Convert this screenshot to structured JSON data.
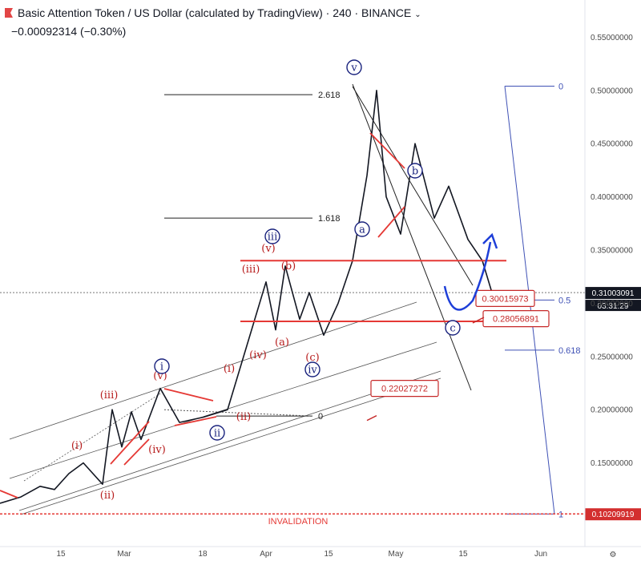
{
  "header": {
    "title": "Basic Attention Token / US Dollar (calculated by TradingView) · 240 · BINANCE",
    "change": "−0.00092314 (−0.30%)"
  },
  "chart_data": {
    "type": "line",
    "interval": "240",
    "exchange": "BINANCE",
    "ylim": [
      0.07,
      0.57
    ],
    "y_ticks": [
      "0.55000000",
      "0.50000000",
      "0.45000000",
      "0.40000000",
      "0.35000000",
      "0.30000000",
      "0.25000000",
      "0.20000000",
      "0.15000000"
    ],
    "x_ticks": [
      "15",
      "Mar",
      "18",
      "Apr",
      "15",
      "May",
      "15",
      "Jun"
    ],
    "last_price": "0.31003091",
    "countdown": "03:31:29",
    "invalidation_price": "0.10209919",
    "invalidation_label": "INVALIDATION",
    "price_path": [
      [
        "2021-02-05",
        0.118
      ],
      [
        "2021-02-09",
        0.128
      ],
      [
        "2021-02-12",
        0.125
      ],
      [
        "2021-02-15",
        0.14
      ],
      [
        "2021-02-18",
        0.15
      ],
      [
        "2021-02-22",
        0.13
      ],
      [
        "2021-02-24",
        0.2
      ],
      [
        "2021-02-26",
        0.165
      ],
      [
        "2021-02-28",
        0.198
      ],
      [
        "2021-03-02",
        0.172
      ],
      [
        "2021-03-06",
        0.22
      ],
      [
        "2021-03-10",
        0.188
      ],
      [
        "2021-03-15",
        0.193
      ],
      [
        "2021-03-20",
        0.2
      ],
      [
        "2021-03-24",
        0.26
      ],
      [
        "2021-03-28",
        0.32
      ],
      [
        "2021-03-30",
        0.275
      ],
      [
        "2021-04-01",
        0.335
      ],
      [
        "2021-04-04",
        0.285
      ],
      [
        "2021-04-06",
        0.31
      ],
      [
        "2021-04-09",
        0.27
      ],
      [
        "2021-04-12",
        0.3
      ],
      [
        "2021-04-15",
        0.34
      ],
      [
        "2021-04-18",
        0.42
      ],
      [
        "2021-04-20",
        0.5
      ],
      [
        "2021-04-22",
        0.4
      ],
      [
        "2021-04-25",
        0.365
      ],
      [
        "2021-04-28",
        0.45
      ],
      [
        "2021-05-02",
        0.38
      ],
      [
        "2021-05-05",
        0.41
      ],
      [
        "2021-05-09",
        0.36
      ],
      [
        "2021-05-12",
        0.34
      ],
      [
        "2021-05-14",
        0.31
      ]
    ],
    "fib_levels": [
      {
        "label": "2.618",
        "price": 0.496
      },
      {
        "label": "1.618",
        "price": 0.38
      },
      {
        "label": "0",
        "price": 0.194
      }
    ],
    "target_fib_levels": [
      {
        "label": "0",
        "price": 0.504
      },
      {
        "label": "0.5",
        "price": 0.303
      },
      {
        "label": "0.618",
        "price": 0.256
      },
      {
        "label": "1",
        "price": 0.102
      }
    ],
    "price_boxes": [
      {
        "label": "0.30015973",
        "price": 0.3
      },
      {
        "label": "0.28056891",
        "price": 0.281
      },
      {
        "label": "0.22027272",
        "price": 0.22
      }
    ],
    "horizontal_lines": [
      0.34,
      0.283
    ],
    "wave_labels_red": [
      "(i)",
      "(ii)",
      "(iii)",
      "(iv)",
      "(v)",
      "(i)",
      "(ii)",
      "(iii)",
      "(iv)",
      "(v)",
      "(a)",
      "(b)",
      "(c)"
    ],
    "wave_labels_blue": [
      "i",
      "ii",
      "iii",
      "iv",
      "v",
      "a",
      "b",
      "c"
    ],
    "colors": {
      "price": "#131722",
      "wave_red": "#b71c1c",
      "wave_blue": "#1a237e",
      "arrow": "#1e3fd8",
      "invalidation": "#e53935",
      "fib": "#3f51b5"
    }
  }
}
